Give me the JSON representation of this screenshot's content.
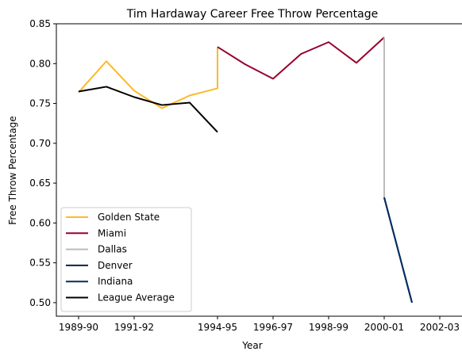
{
  "chart_data": {
    "type": "line",
    "title": "Tim Hardaway Career Free Throw Percentage",
    "xlabel": "Year",
    "ylabel": "Free Throw Percentage",
    "x_index_range": [
      -0.8,
      13.8
    ],
    "ylim": [
      0.483,
      0.85
    ],
    "x_ticks": [
      {
        "index": 0,
        "label": "1989-90"
      },
      {
        "index": 2,
        "label": "1991-92"
      },
      {
        "index": 5,
        "label": "1994-95"
      },
      {
        "index": 7,
        "label": "1996-97"
      },
      {
        "index": 9,
        "label": "1998-99"
      },
      {
        "index": 11,
        "label": "2000-01"
      },
      {
        "index": 13,
        "label": "2002-03"
      }
    ],
    "y_ticks": [
      "0.50",
      "0.55",
      "0.60",
      "0.65",
      "0.70",
      "0.75",
      "0.80",
      "0.85"
    ],
    "y_tick_values": [
      0.5,
      0.55,
      0.6,
      0.65,
      0.7,
      0.75,
      0.8,
      0.85
    ],
    "legend_position": "lower left",
    "grid": false,
    "series": [
      {
        "name": "Golden State",
        "color": "#FDB927",
        "points": [
          [
            0,
            0.764
          ],
          [
            1,
            0.803
          ],
          [
            2,
            0.766
          ],
          [
            3,
            0.744
          ],
          [
            4,
            0.76
          ],
          [
            5,
            0.769
          ],
          [
            5,
            0.821
          ]
        ]
      },
      {
        "name": "Miami",
        "color": "#98002E",
        "points": [
          [
            5,
            0.821
          ],
          [
            6,
            0.799
          ],
          [
            7,
            0.781
          ],
          [
            8,
            0.812
          ],
          [
            9,
            0.827
          ],
          [
            10,
            0.801
          ],
          [
            11,
            0.833
          ]
        ]
      },
      {
        "name": "Dallas",
        "color": "#BBBBBB",
        "points": [
          [
            11,
            0.833
          ],
          [
            11,
            0.632
          ]
        ]
      },
      {
        "name": "Denver",
        "color": "#0E2240",
        "points": [
          [
            11,
            0.632
          ],
          [
            12,
            0.5
          ]
        ]
      },
      {
        "name": "Indiana",
        "color": "#002D62",
        "points": [
          [
            11,
            0.632
          ],
          [
            12,
            0.5
          ]
        ]
      },
      {
        "name": "League Average",
        "color": "#000000",
        "points": [
          [
            0,
            0.765
          ],
          [
            1,
            0.771
          ],
          [
            2,
            0.758
          ],
          [
            3,
            0.748
          ],
          [
            4,
            0.751
          ],
          [
            5,
            0.714
          ]
        ]
      }
    ]
  }
}
